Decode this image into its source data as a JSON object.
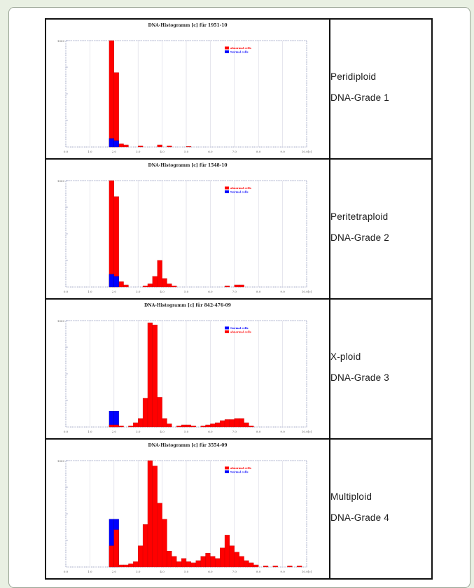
{
  "rows": [
    {
      "grade_label": [
        "Peridiploid",
        "DNA-Grade 1"
      ],
      "chart": {
        "title": "DNA-Histogramm [c] für 1951-10",
        "ytop": "1000",
        "legend": [
          "abnormal cells",
          "Normal cells"
        ],
        "legend_colors": [
          "#ff0000",
          "#0000ff"
        ]
      }
    },
    {
      "grade_label": [
        "Peritetraploid",
        "DNA-Grade 2"
      ],
      "chart": {
        "title": "DNA-Histogramm [c] für 1548-10",
        "ytop": "1000",
        "legend": [
          "abnormal cells",
          "Normal cells"
        ],
        "legend_colors": [
          "#ff0000",
          "#0000ff"
        ]
      }
    },
    {
      "grade_label": [
        "X-ploid",
        "DNA-Grade 3"
      ],
      "chart": {
        "title": "DNA-Histogramm [c] für 842-476-09",
        "ytop": "1000",
        "legend": [
          "Normal cells",
          "abnormal cells"
        ],
        "legend_colors": [
          "#0000ff",
          "#ff0000"
        ]
      }
    },
    {
      "grade_label": [
        "Multiploid",
        "DNA-Grade 4"
      ],
      "chart": {
        "title": "DNA-Histogramm [c] für 3554-09",
        "ytop": "1000",
        "legend": [
          "abnormal cells",
          "Normal cells"
        ],
        "legend_colors": [
          "#ff0000",
          "#0000ff"
        ]
      }
    }
  ],
  "chart_data": [
    {
      "type": "bar",
      "title": "DNA-Histogramm [c] für 1951-10",
      "xlabel": "",
      "ylabel": "",
      "x_ticks": [
        "0.0",
        "1.0",
        "2.0",
        "3.0",
        "4.0",
        "5.0",
        "6.0",
        "7.0",
        "8.0",
        "9.0",
        "10.0[c]"
      ],
      "xlim": [
        0,
        10
      ],
      "ylim": [
        0,
        100
      ],
      "series": [
        {
          "name": "abnormal cells",
          "color": "#ff0000",
          "bins": [
            [
              1.8,
              100
            ],
            [
              2.0,
              70
            ],
            [
              2.2,
              3
            ],
            [
              2.4,
              2
            ],
            [
              3.0,
              1
            ],
            [
              3.8,
              2
            ],
            [
              4.2,
              1
            ],
            [
              5.0,
              0.5
            ]
          ]
        },
        {
          "name": "Normal cells",
          "color": "#0000ff",
          "bins": [
            [
              1.8,
              8
            ],
            [
              2.0,
              6
            ]
          ]
        }
      ]
    },
    {
      "type": "bar",
      "title": "DNA-Histogramm [c] für 1548-10",
      "xlabel": "",
      "ylabel": "",
      "x_ticks": [
        "0.0",
        "1.0",
        "2.0",
        "3.0",
        "4.0",
        "5.0",
        "6.0",
        "7.0",
        "8.0",
        "9.0",
        "10.0[c]"
      ],
      "xlim": [
        0,
        10
      ],
      "ylim": [
        0,
        100
      ],
      "series": [
        {
          "name": "abnormal cells",
          "color": "#ff0000",
          "bins": [
            [
              1.8,
              100
            ],
            [
              2.0,
              85
            ],
            [
              2.2,
              5
            ],
            [
              2.4,
              2
            ],
            [
              3.2,
              1
            ],
            [
              3.4,
              3
            ],
            [
              3.6,
              10
            ],
            [
              3.8,
              25
            ],
            [
              4.0,
              8
            ],
            [
              4.2,
              3
            ],
            [
              4.4,
              1
            ],
            [
              6.6,
              1
            ],
            [
              7.0,
              2
            ],
            [
              7.2,
              2
            ]
          ]
        },
        {
          "name": "Normal cells",
          "color": "#0000ff",
          "bins": [
            [
              1.8,
              12
            ],
            [
              2.0,
              10
            ]
          ]
        }
      ]
    },
    {
      "type": "bar",
      "title": "DNA-Histogramm [c] für 842-476-09",
      "xlabel": "",
      "ylabel": "",
      "x_ticks": [
        "0.0",
        "1.0",
        "2.0",
        "3.0",
        "4.0",
        "5.0",
        "6.0",
        "7.0",
        "8.0",
        "9.0",
        "10.0[c]"
      ],
      "xlim": [
        0,
        10
      ],
      "ylim": [
        0,
        100
      ],
      "series": [
        {
          "name": "Normal cells",
          "color": "#0000ff",
          "bins": [
            [
              1.8,
              15
            ],
            [
              2.0,
              15
            ]
          ]
        },
        {
          "name": "abnormal cells",
          "color": "#ff0000",
          "bins": [
            [
              1.8,
              2
            ],
            [
              2.0,
              2
            ],
            [
              2.2,
              1
            ],
            [
              2.6,
              1
            ],
            [
              2.8,
              4
            ],
            [
              3.0,
              8
            ],
            [
              3.2,
              27
            ],
            [
              3.4,
              98
            ],
            [
              3.6,
              96
            ],
            [
              3.8,
              28
            ],
            [
              4.0,
              8
            ],
            [
              4.2,
              3
            ],
            [
              4.6,
              1
            ],
            [
              4.8,
              2
            ],
            [
              5.0,
              2
            ],
            [
              5.2,
              1
            ],
            [
              5.6,
              1
            ],
            [
              5.8,
              2
            ],
            [
              6.0,
              3
            ],
            [
              6.2,
              4
            ],
            [
              6.4,
              6
            ],
            [
              6.6,
              7
            ],
            [
              6.8,
              7
            ],
            [
              7.0,
              8
            ],
            [
              7.2,
              8
            ],
            [
              7.4,
              4
            ],
            [
              7.6,
              1
            ]
          ]
        }
      ]
    },
    {
      "type": "bar",
      "title": "DNA-Histogramm [c] für 3554-09",
      "xlabel": "",
      "ylabel": "",
      "x_ticks": [
        "0.0",
        "1.0",
        "2.0",
        "3.0",
        "4.0",
        "5.0",
        "6.0",
        "7.0",
        "8.0",
        "9.0",
        "10.0[c]"
      ],
      "xlim": [
        0,
        10
      ],
      "ylim": [
        0,
        100
      ],
      "series": [
        {
          "name": "Normal cells",
          "color": "#0000ff",
          "bins": [
            [
              1.8,
              45
            ],
            [
              2.0,
              45
            ]
          ]
        },
        {
          "name": "abnormal cells",
          "color": "#ff0000",
          "bins": [
            [
              1.8,
              20
            ],
            [
              2.0,
              35
            ],
            [
              2.2,
              2
            ],
            [
              2.4,
              2
            ],
            [
              2.6,
              3
            ],
            [
              2.8,
              5
            ],
            [
              3.0,
              20
            ],
            [
              3.2,
              40
            ],
            [
              3.4,
              100
            ],
            [
              3.6,
              95
            ],
            [
              3.8,
              60
            ],
            [
              4.0,
              45
            ],
            [
              4.2,
              15
            ],
            [
              4.4,
              10
            ],
            [
              4.6,
              5
            ],
            [
              4.8,
              8
            ],
            [
              5.0,
              5
            ],
            [
              5.2,
              4
            ],
            [
              5.4,
              6
            ],
            [
              5.6,
              10
            ],
            [
              5.8,
              13
            ],
            [
              6.0,
              10
            ],
            [
              6.2,
              8
            ],
            [
              6.4,
              18
            ],
            [
              6.6,
              30
            ],
            [
              6.8,
              20
            ],
            [
              7.0,
              14
            ],
            [
              7.2,
              10
            ],
            [
              7.4,
              6
            ],
            [
              7.6,
              4
            ],
            [
              7.8,
              2
            ],
            [
              8.2,
              1
            ],
            [
              8.6,
              1
            ],
            [
              9.2,
              1
            ],
            [
              9.6,
              1
            ]
          ]
        }
      ]
    }
  ]
}
